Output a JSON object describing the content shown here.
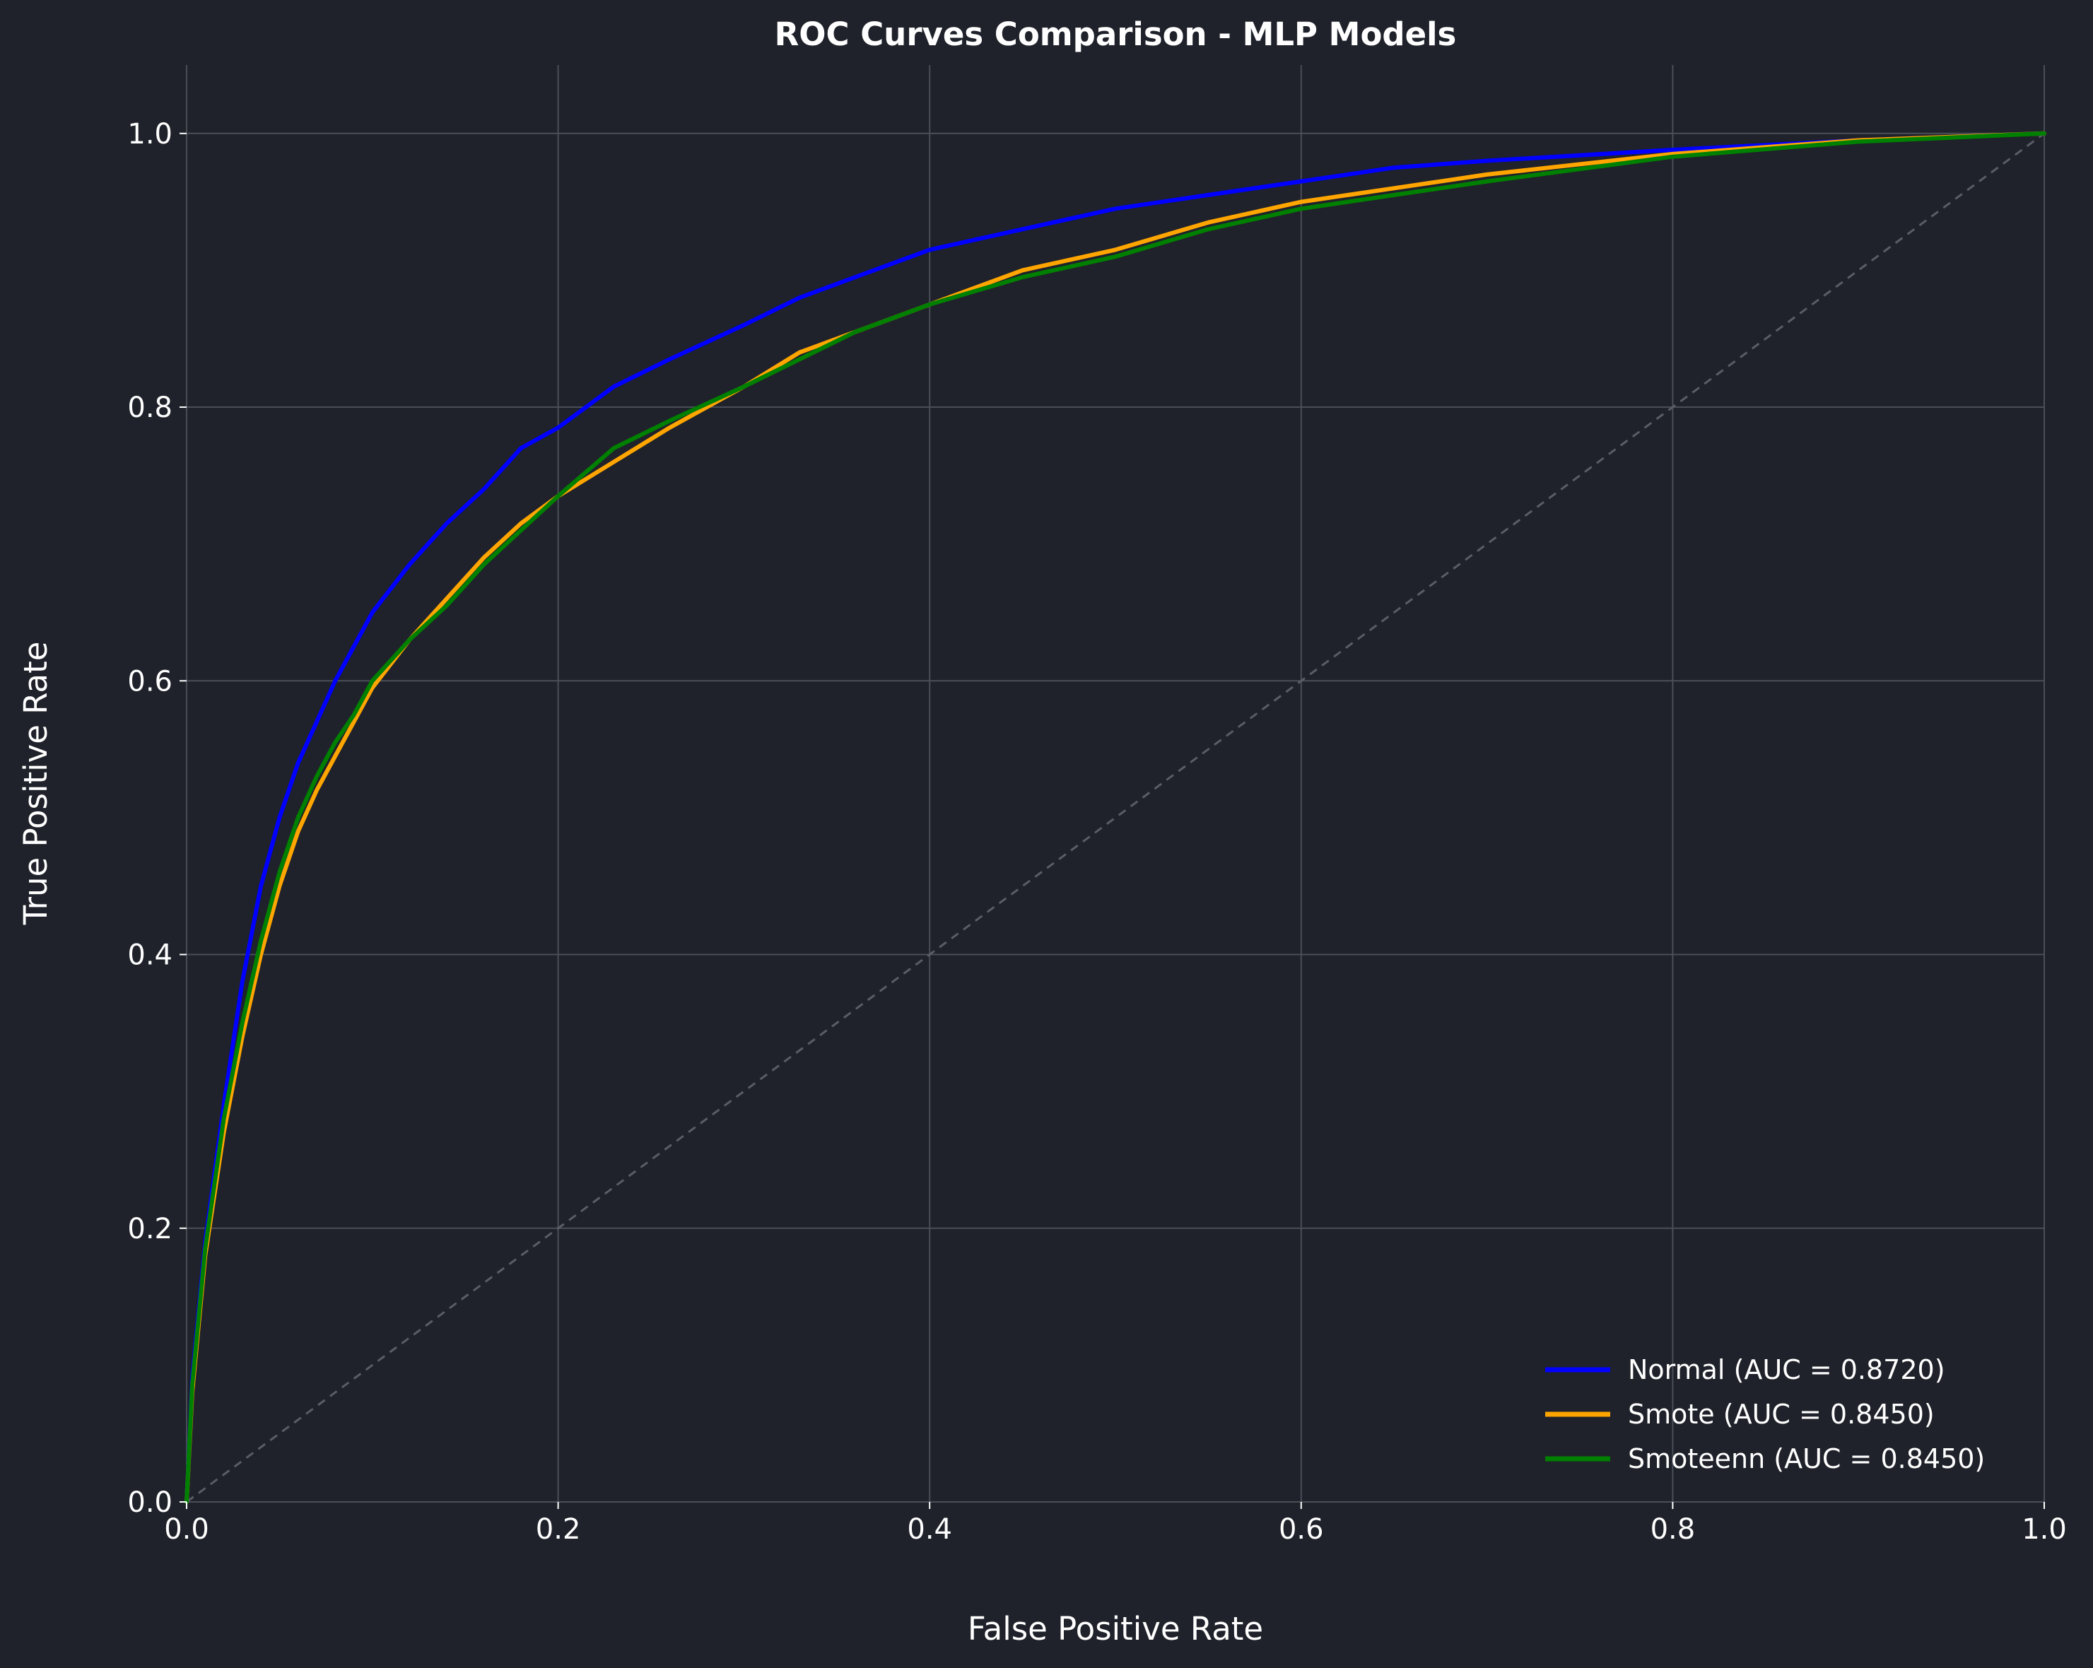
{
  "chart_data": {
    "type": "line",
    "title": "ROC Curves Comparison - MLP Models",
    "xlabel": "False Positive Rate",
    "ylabel": "True Positive Rate",
    "xlim": [
      0,
      1
    ],
    "ylim": [
      0,
      1.05
    ],
    "x_ticks": [
      "0.0",
      "0.2",
      "0.4",
      "0.6",
      "0.8",
      "1.0"
    ],
    "y_ticks": [
      "0.0",
      "0.2",
      "0.4",
      "0.6",
      "0.8",
      "1.0"
    ],
    "grid": true,
    "legend_position": "lower-right",
    "background": "#1f222a",
    "series": [
      {
        "name": "Normal (AUC = 0.8720)",
        "color": "#0000ff",
        "points": [
          [
            0,
            0
          ],
          [
            0.003,
            0.09
          ],
          [
            0.01,
            0.19
          ],
          [
            0.02,
            0.29
          ],
          [
            0.03,
            0.38
          ],
          [
            0.04,
            0.45
          ],
          [
            0.05,
            0.5
          ],
          [
            0.06,
            0.54
          ],
          [
            0.07,
            0.57
          ],
          [
            0.08,
            0.6
          ],
          [
            0.09,
            0.625
          ],
          [
            0.1,
            0.65
          ],
          [
            0.12,
            0.685
          ],
          [
            0.14,
            0.715
          ],
          [
            0.16,
            0.74
          ],
          [
            0.18,
            0.77
          ],
          [
            0.2,
            0.785
          ],
          [
            0.23,
            0.815
          ],
          [
            0.26,
            0.835
          ],
          [
            0.3,
            0.86
          ],
          [
            0.33,
            0.88
          ],
          [
            0.36,
            0.895
          ],
          [
            0.4,
            0.915
          ],
          [
            0.45,
            0.93
          ],
          [
            0.5,
            0.945
          ],
          [
            0.55,
            0.955
          ],
          [
            0.6,
            0.965
          ],
          [
            0.65,
            0.975
          ],
          [
            0.7,
            0.98
          ],
          [
            0.8,
            0.988
          ],
          [
            0.9,
            0.995
          ],
          [
            1,
            1
          ]
        ]
      },
      {
        "name": "Smote (AUC = 0.8450)",
        "color": "#ffa500",
        "points": [
          [
            0,
            0
          ],
          [
            0.003,
            0.08
          ],
          [
            0.01,
            0.18
          ],
          [
            0.02,
            0.27
          ],
          [
            0.03,
            0.34
          ],
          [
            0.04,
            0.4
          ],
          [
            0.05,
            0.45
          ],
          [
            0.06,
            0.49
          ],
          [
            0.07,
            0.52
          ],
          [
            0.08,
            0.545
          ],
          [
            0.09,
            0.57
          ],
          [
            0.1,
            0.595
          ],
          [
            0.12,
            0.63
          ],
          [
            0.14,
            0.66
          ],
          [
            0.16,
            0.69
          ],
          [
            0.18,
            0.715
          ],
          [
            0.2,
            0.735
          ],
          [
            0.23,
            0.76
          ],
          [
            0.26,
            0.785
          ],
          [
            0.3,
            0.815
          ],
          [
            0.33,
            0.84
          ],
          [
            0.36,
            0.855
          ],
          [
            0.4,
            0.875
          ],
          [
            0.45,
            0.9
          ],
          [
            0.5,
            0.915
          ],
          [
            0.55,
            0.935
          ],
          [
            0.6,
            0.95
          ],
          [
            0.65,
            0.96
          ],
          [
            0.7,
            0.97
          ],
          [
            0.8,
            0.985
          ],
          [
            0.9,
            0.995
          ],
          [
            1,
            1
          ]
        ]
      },
      {
        "name": "Smoteenn (AUC = 0.8450)",
        "color": "#008000",
        "points": [
          [
            0,
            0
          ],
          [
            0.003,
            0.085
          ],
          [
            0.01,
            0.185
          ],
          [
            0.02,
            0.28
          ],
          [
            0.03,
            0.35
          ],
          [
            0.04,
            0.41
          ],
          [
            0.05,
            0.46
          ],
          [
            0.06,
            0.5
          ],
          [
            0.07,
            0.53
          ],
          [
            0.08,
            0.555
          ],
          [
            0.09,
            0.575
          ],
          [
            0.1,
            0.6
          ],
          [
            0.12,
            0.63
          ],
          [
            0.14,
            0.655
          ],
          [
            0.16,
            0.685
          ],
          [
            0.18,
            0.71
          ],
          [
            0.2,
            0.735
          ],
          [
            0.23,
            0.77
          ],
          [
            0.26,
            0.79
          ],
          [
            0.3,
            0.815
          ],
          [
            0.33,
            0.835
          ],
          [
            0.36,
            0.855
          ],
          [
            0.4,
            0.875
          ],
          [
            0.45,
            0.895
          ],
          [
            0.5,
            0.91
          ],
          [
            0.55,
            0.93
          ],
          [
            0.6,
            0.945
          ],
          [
            0.65,
            0.955
          ],
          [
            0.7,
            0.965
          ],
          [
            0.8,
            0.983
          ],
          [
            0.9,
            0.994
          ],
          [
            1,
            1
          ]
        ]
      }
    ],
    "reference_line": {
      "color": "#5a5d65",
      "style": "dashed",
      "points": [
        [
          0,
          0
        ],
        [
          1,
          1
        ]
      ]
    }
  }
}
